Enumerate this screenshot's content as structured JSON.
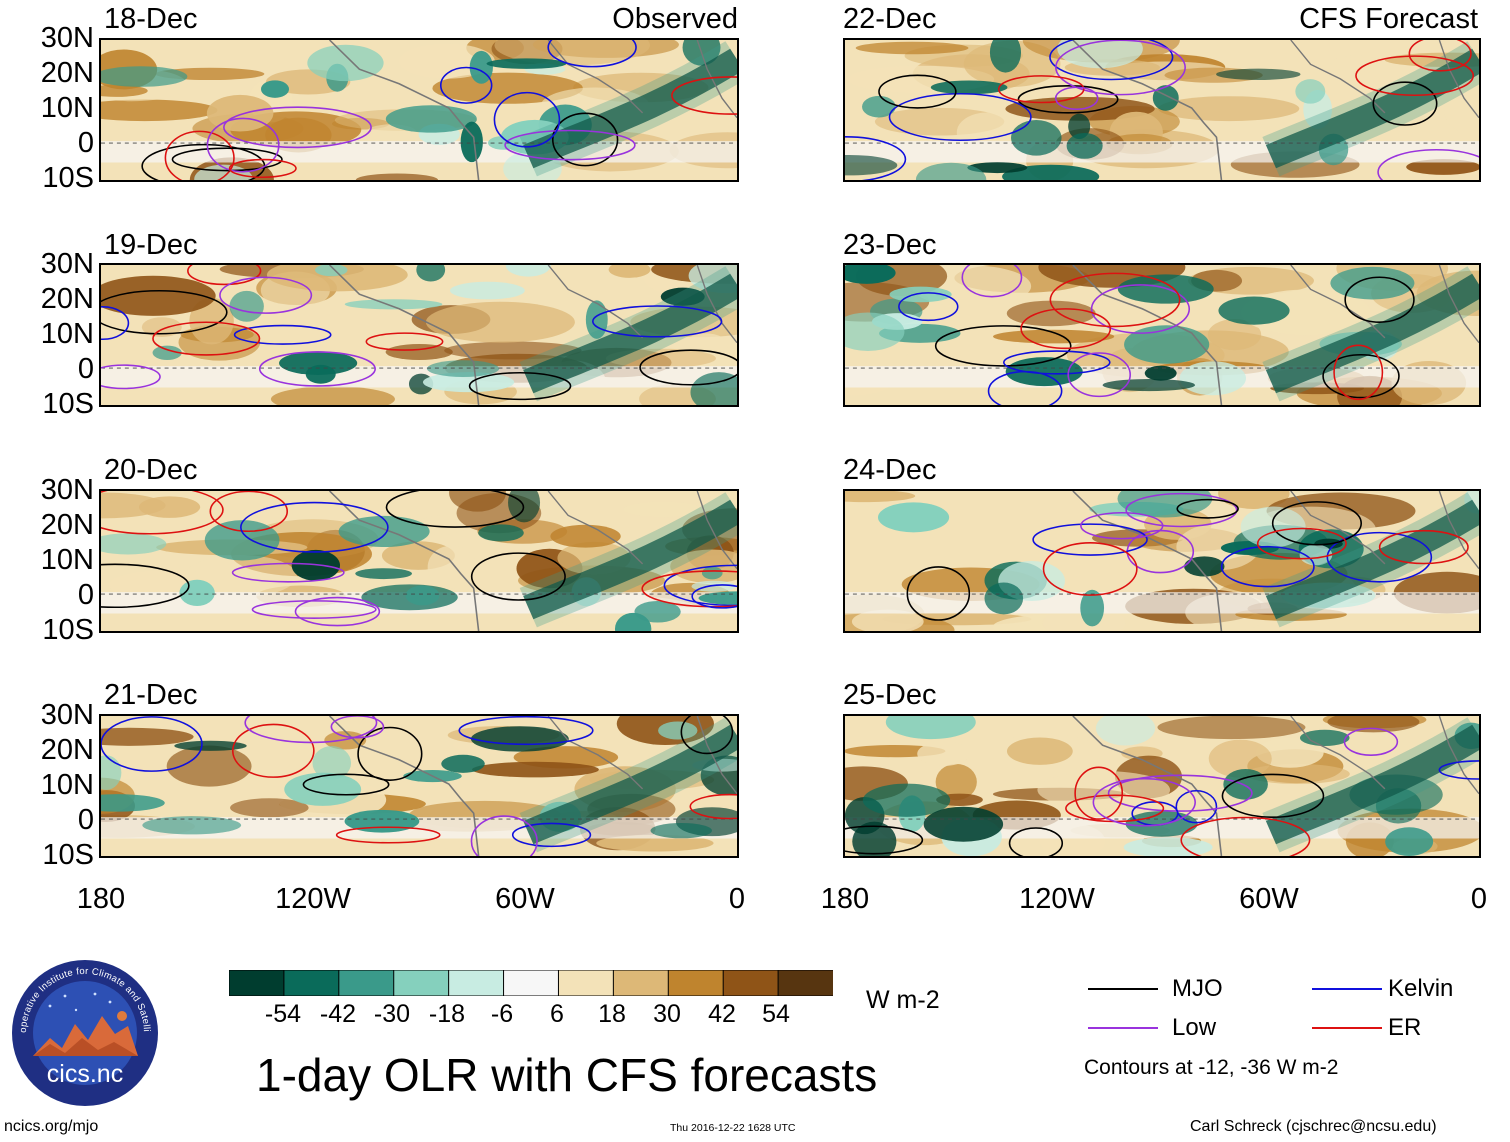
{
  "panels": {
    "observed": [
      {
        "date": "18-Dec",
        "tag": "Observed"
      },
      {
        "date": "19-Dec"
      },
      {
        "date": "20-Dec"
      },
      {
        "date": "21-Dec"
      }
    ],
    "forecast": [
      {
        "date": "22-Dec",
        "tag": "CFS Forecast"
      },
      {
        "date": "23-Dec"
      },
      {
        "date": "24-Dec"
      },
      {
        "date": "25-Dec"
      }
    ]
  },
  "axes": {
    "lat_labels": [
      "30N",
      "20N",
      "10N",
      "0",
      "10S"
    ],
    "lon_labels": [
      "180",
      "120W",
      "60W",
      "0"
    ]
  },
  "colorbar": {
    "labels": [
      "-54",
      "-42",
      "-30",
      "-18",
      "-6",
      "6",
      "18",
      "30",
      "42",
      "54"
    ],
    "units": "W m-2",
    "colors": [
      "#003d2f",
      "#0a6b5a",
      "#3a9a8a",
      "#85d0bd",
      "#c8ece2",
      "#f7f7f7",
      "#f3e2b8",
      "#ddb877",
      "#bf842e",
      "#8f5417",
      "#573510"
    ]
  },
  "legend": {
    "items": [
      {
        "label": "MJO",
        "color": "#000000"
      },
      {
        "label": "Kelvin",
        "color": "#1010dd"
      },
      {
        "label": "Low",
        "color": "#9933dd"
      },
      {
        "label": "ER",
        "color": "#dd1111"
      }
    ],
    "note": "Contours at -12, -36 W m-2"
  },
  "logo": {
    "text": "cics.nc",
    "ring_text": "Cooperative Institute for Climate and Satellites"
  },
  "title": "1-day OLR with CFS forecasts",
  "footer": {
    "left": "ncics.org/mjo",
    "center": "Thu 2016-12-22 1628 UTC",
    "right": "Carl Schreck (cjschrec@ncsu.edu)"
  }
}
